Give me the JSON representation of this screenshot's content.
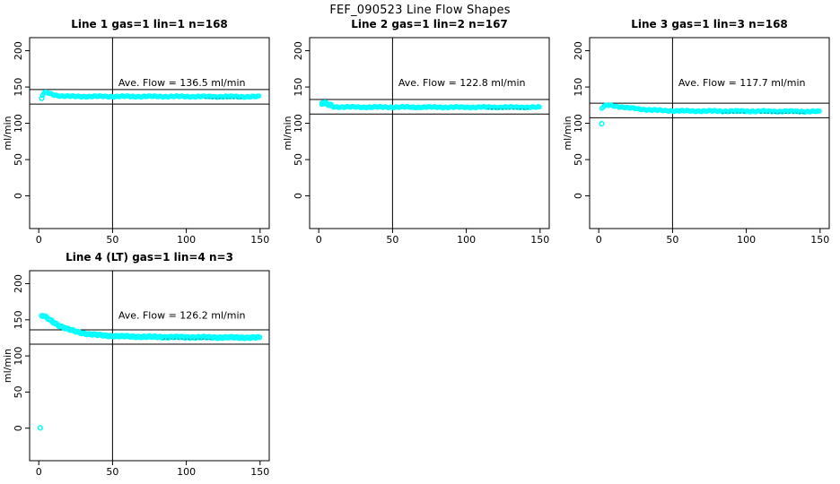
{
  "page_title": "FEF_090523  Line Flow Shapes",
  "colors": {
    "point": "#00ffff",
    "point_dark": "#00b4b4",
    "axis": "#000000",
    "background": "#ffffff"
  },
  "axes": {
    "ylabel": "ml/min",
    "xlabel": "",
    "xticks": [
      0,
      50,
      100,
      150
    ],
    "yticks": [
      0,
      50,
      100,
      150,
      200
    ],
    "xlim": [
      -6.2,
      156.2
    ],
    "ylim": [
      -45,
      218
    ]
  },
  "chart_data": [
    {
      "type": "scatter",
      "title": "Line 1 gas=1 lin=1 n=168",
      "annotation": "Ave. Flow =  136.5  ml/min",
      "ave_flow": 136.5,
      "n": 168,
      "ylabel": "ml/min",
      "hlines": [
        146.5,
        126.5
      ],
      "vline_x": 50,
      "grid": [
        0,
        0
      ],
      "point_radius": 2.1,
      "outliers": [
        [
          2,
          134.5
        ]
      ],
      "profile": [
        [
          2.5,
          138.5
        ],
        [
          3,
          140.5
        ],
        [
          4,
          142
        ],
        [
          5,
          142.3
        ],
        [
          6,
          142
        ],
        [
          7,
          141.3
        ],
        [
          8,
          140.6
        ],
        [
          9,
          140
        ],
        [
          10,
          139.4
        ],
        [
          12,
          138.6
        ],
        [
          14,
          138
        ],
        [
          16,
          137.6
        ],
        [
          18,
          137.4
        ],
        [
          20,
          137.2
        ],
        [
          25,
          137
        ],
        [
          30,
          137
        ],
        [
          40,
          137
        ],
        [
          60,
          137
        ],
        [
          80,
          137
        ],
        [
          100,
          136.9
        ],
        [
          120,
          136.8
        ],
        [
          150,
          136.7
        ]
      ],
      "dark_marks": [
        [
          113,
          138
        ]
      ]
    },
    {
      "type": "scatter",
      "title": "Line 2 gas=1 lin=2 n=167",
      "annotation": "Ave. Flow =  122.8  ml/min",
      "ave_flow": 122.8,
      "n": 167,
      "ylabel": "ml/min",
      "hlines": [
        132.8,
        112.8
      ],
      "vline_x": 50,
      "grid": [
        0,
        1
      ],
      "point_radius": 2.1,
      "outliers": [],
      "profile": [
        [
          2,
          126
        ],
        [
          3,
          127
        ],
        [
          4,
          126.8
        ],
        [
          5,
          126
        ],
        [
          6,
          125.2
        ],
        [
          7,
          124.4
        ],
        [
          8,
          123.8
        ],
        [
          10,
          123
        ],
        [
          12,
          122.7
        ],
        [
          15,
          122.5
        ],
        [
          20,
          122.4
        ],
        [
          30,
          122.3
        ],
        [
          50,
          122.3
        ],
        [
          80,
          122.2
        ],
        [
          120,
          122.2
        ],
        [
          150,
          122.1
        ]
      ],
      "dark_marks": [
        [
          115,
          143
        ]
      ]
    },
    {
      "type": "scatter",
      "title": "Line 3 gas=1 lin=3 n=168",
      "annotation": "Ave. Flow =  117.7  ml/min",
      "ave_flow": 117.7,
      "n": 168,
      "ylabel": "ml/min",
      "hlines": [
        127.7,
        107.7
      ],
      "vline_x": 50,
      "grid": [
        0,
        2
      ],
      "point_radius": 2.1,
      "outliers": [
        [
          2,
          99.5
        ]
      ],
      "profile": [
        [
          2,
          120.5
        ],
        [
          3,
          122.5
        ],
        [
          4,
          123.8
        ],
        [
          5,
          124.5
        ],
        [
          6,
          124.8
        ],
        [
          8,
          124.6
        ],
        [
          10,
          124.2
        ],
        [
          12,
          123.5
        ],
        [
          15,
          122.6
        ],
        [
          18,
          121.8
        ],
        [
          21,
          121
        ],
        [
          25,
          120.2
        ],
        [
          30,
          119.2
        ],
        [
          35,
          118.5
        ],
        [
          40,
          117.9
        ],
        [
          45,
          117.5
        ],
        [
          50,
          117.3
        ],
        [
          60,
          117
        ],
        [
          70,
          116.9
        ],
        [
          85,
          116.8
        ],
        [
          100,
          116.7
        ],
        [
          120,
          116.5
        ],
        [
          150,
          116.3
        ]
      ],
      "dark_marks": [
        [
          84,
          100
        ],
        [
          110,
          140
        ]
      ]
    },
    {
      "type": "scatter",
      "title": "Line 4 (LT) gas=1 lin=4 n=3",
      "annotation": "Ave. Flow =  126.2  ml/min",
      "ave_flow": 126.2,
      "n": 3,
      "ylabel": "ml/min",
      "hlines": [
        136.2,
        116.2
      ],
      "vline_x": 50,
      "grid": [
        1,
        0
      ],
      "point_radius": 2.5,
      "outliers": [
        [
          1,
          0.5
        ]
      ],
      "profile": [
        [
          2,
          155.5
        ],
        [
          3,
          155.3
        ],
        [
          4,
          154.5
        ],
        [
          5,
          153.3
        ],
        [
          6,
          152
        ],
        [
          7,
          150.6
        ],
        [
          8,
          149.2
        ],
        [
          9,
          147.9
        ],
        [
          10,
          146.6
        ],
        [
          11,
          145.4
        ],
        [
          12,
          144.2
        ],
        [
          13,
          143.1
        ],
        [
          14,
          142
        ],
        [
          15,
          141
        ],
        [
          16,
          140.1
        ],
        [
          17,
          139.2
        ],
        [
          18,
          138.4
        ],
        [
          19,
          137.6
        ],
        [
          20,
          136.9
        ],
        [
          22,
          135.6
        ],
        [
          24,
          134.4
        ],
        [
          26,
          133.3
        ],
        [
          28,
          132.4
        ],
        [
          30,
          131.6
        ],
        [
          33,
          130.6
        ],
        [
          36,
          129.8
        ],
        [
          40,
          128.9
        ],
        [
          45,
          128.2
        ],
        [
          50,
          127.7
        ],
        [
          55,
          127.3
        ],
        [
          60,
          127
        ],
        [
          70,
          126.6
        ],
        [
          80,
          126.3
        ],
        [
          90,
          126.1
        ],
        [
          100,
          125.9
        ],
        [
          110,
          125.8
        ],
        [
          125,
          125.6
        ],
        [
          150,
          125.4
        ]
      ],
      "dark_marks": [
        [
          85,
          118
        ]
      ]
    }
  ]
}
